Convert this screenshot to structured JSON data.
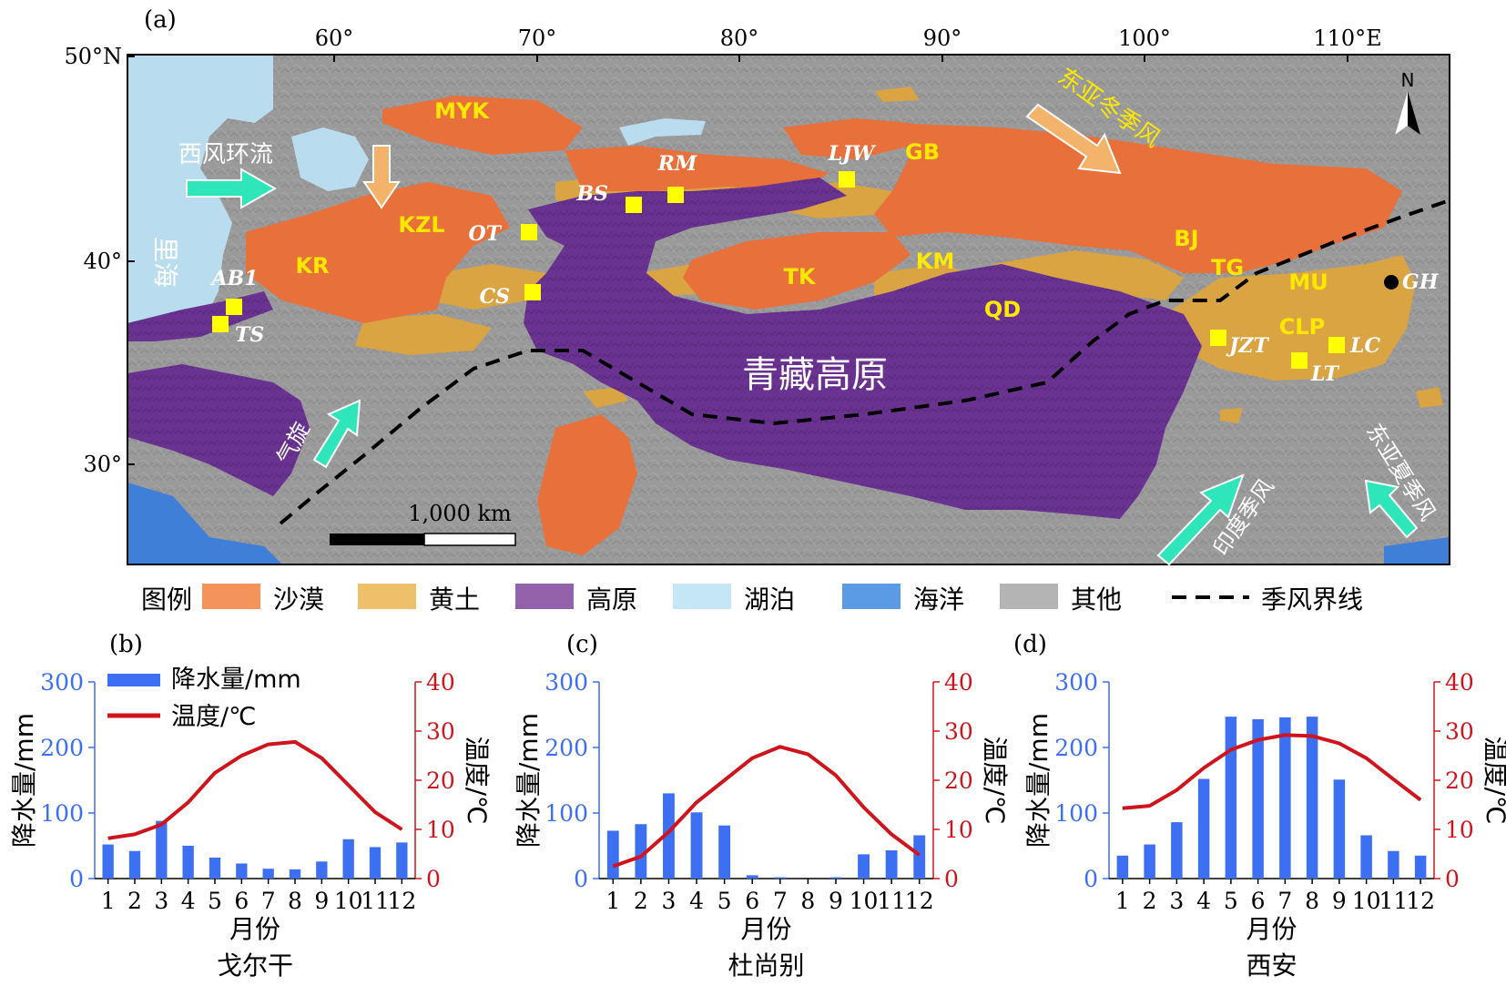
{
  "panel_labels": {
    "a": "(a)",
    "b": "(b)",
    "c": "(c)",
    "d": "(d)"
  },
  "map": {
    "lon_ticks": [
      "60°",
      "70°",
      "80°",
      "90°",
      "100°",
      "110°E"
    ],
    "lat_ticks": [
      "50°N",
      "40°",
      "30°"
    ],
    "north_label": "N",
    "scale_bar_label": "1,000 km",
    "plateau_label": "青藏高原",
    "sea_label": "里海",
    "region_labels": [
      "MYK",
      "KZL",
      "KR",
      "GB",
      "TK",
      "KM",
      "QD",
      "BJ",
      "TG",
      "MU",
      "CLP"
    ],
    "site_labels": [
      "AB1",
      "TS",
      "OT",
      "CS",
      "BS",
      "RM",
      "LJW",
      "JZT",
      "LC",
      "LT",
      "GH"
    ],
    "arrows": {
      "westerlies": "西风环流",
      "winter_monsoon": "东亚冬季风",
      "cyclone": "气旋",
      "indian_monsoon": "印度季风",
      "summer_monsoon": "东亚夏季风"
    },
    "colors": {
      "desert": "#e8703a",
      "loess": "#d9a441",
      "plateau": "#6a3391",
      "lake": "#b9dcef",
      "ocean": "#3f7fd8",
      "other": "#9a9a9a",
      "site": "#ffff00"
    }
  },
  "legend": {
    "title": "图例",
    "items": [
      {
        "label": "沙漠",
        "color": "#f4945c"
      },
      {
        "label": "黄土",
        "color": "#eec06a"
      },
      {
        "label": "高原",
        "color": "#9362aa"
      },
      {
        "label": "湖泊",
        "color": "#c4e6f5"
      },
      {
        "label": "海洋",
        "color": "#5b9be6"
      },
      {
        "label": "其他",
        "color": "#b4b4b4"
      }
    ],
    "line_label": "季风界线"
  },
  "chart_data": [
    {
      "type": "bar",
      "title": "戈尔干",
      "xlabel": "月份",
      "ylabel": "降水量/mm",
      "y2label": "温度/℃",
      "categories": [
        "1",
        "2",
        "3",
        "4",
        "5",
        "6",
        "7",
        "8",
        "9",
        "10",
        "11",
        "12"
      ],
      "ylim": [
        0,
        300
      ],
      "y2lim": [
        0,
        40
      ],
      "yticks": [
        "0",
        "100",
        "200",
        "300"
      ],
      "y2ticks": [
        "0",
        "10",
        "20",
        "30",
        "40"
      ],
      "series": [
        {
          "name": "降水量/mm",
          "kind": "bar",
          "color": "#3d6ff2",
          "values": [
            52,
            42,
            88,
            50,
            32,
            23,
            15,
            14,
            26,
            60,
            48,
            55
          ]
        },
        {
          "name": "温度/℃",
          "kind": "line",
          "axis": "right",
          "color": "#d0141e",
          "values": [
            8.2,
            9.0,
            11.0,
            15.5,
            21.5,
            25.0,
            27.3,
            27.8,
            24.5,
            19.0,
            13.5,
            10.0
          ]
        }
      ],
      "legend": "top-left"
    },
    {
      "type": "bar",
      "title": "杜尚别",
      "xlabel": "月份",
      "ylabel": "降水量/mm",
      "y2label": "温度/℃",
      "categories": [
        "1",
        "2",
        "3",
        "4",
        "5",
        "6",
        "7",
        "8",
        "9",
        "10",
        "11",
        "12"
      ],
      "ylim": [
        0,
        300
      ],
      "y2lim": [
        0,
        40
      ],
      "yticks": [
        "0",
        "100",
        "200",
        "300"
      ],
      "y2ticks": [
        "0",
        "10",
        "20",
        "30",
        "40"
      ],
      "series": [
        {
          "name": "降水量/mm",
          "kind": "bar",
          "color": "#3d6ff2",
          "values": [
            73,
            83,
            130,
            101,
            81,
            5,
            2,
            0,
            2,
            37,
            43,
            66
          ]
        },
        {
          "name": "温度/℃",
          "kind": "line",
          "axis": "right",
          "color": "#d0141e",
          "values": [
            2.5,
            4.5,
            9.5,
            15.5,
            20.0,
            24.5,
            26.8,
            25.3,
            21.0,
            14.5,
            9.0,
            4.8
          ]
        }
      ]
    },
    {
      "type": "bar",
      "title": "西安",
      "xlabel": "月份",
      "ylabel": "降水量/mm",
      "y2label": "温度/℃",
      "categories": [
        "1",
        "2",
        "3",
        "4",
        "5",
        "6",
        "7",
        "8",
        "9",
        "10",
        "11",
        "12"
      ],
      "ylim": [
        0,
        300
      ],
      "y2lim": [
        0,
        40
      ],
      "yticks": [
        "0",
        "100",
        "200",
        "300"
      ],
      "y2ticks": [
        "0",
        "10",
        "20",
        "30",
        "40"
      ],
      "series": [
        {
          "name": "降水量/mm",
          "kind": "bar",
          "color": "#3d6ff2",
          "values": [
            35,
            52,
            86,
            152,
            247,
            243,
            246,
            247,
            151,
            66,
            42,
            35
          ]
        },
        {
          "name": "温度/℃",
          "kind": "line",
          "axis": "right",
          "color": "#d0141e",
          "values": [
            14.3,
            14.8,
            18.0,
            22.5,
            26.2,
            28.2,
            29.2,
            29.0,
            27.5,
            24.5,
            20.2,
            16.0
          ]
        }
      ]
    }
  ]
}
